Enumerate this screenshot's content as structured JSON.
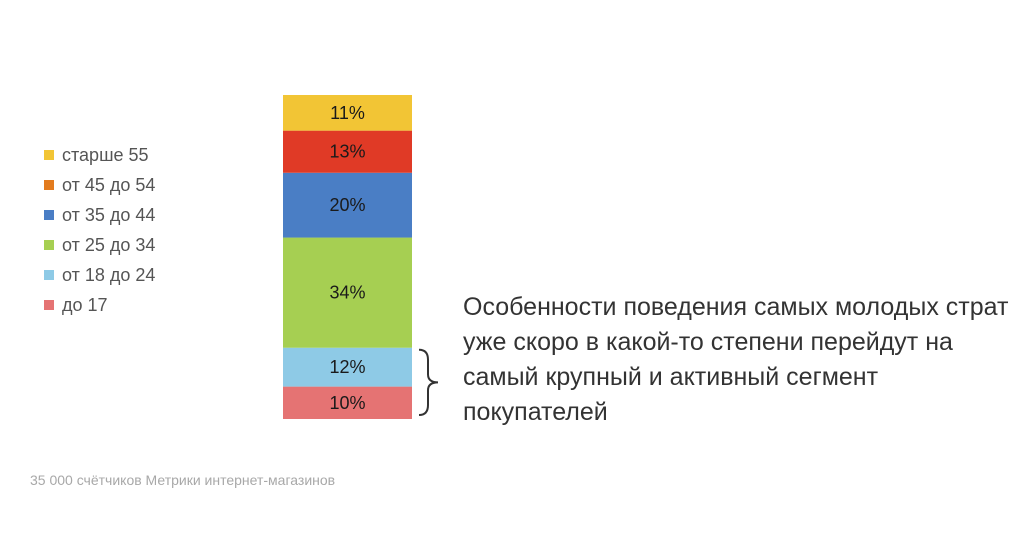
{
  "chart_data": {
    "type": "bar",
    "stacked": true,
    "categories": [
      ""
    ],
    "series": [
      {
        "name": "до 17",
        "values": [
          10
        ],
        "label": "10%",
        "color": "#e57373"
      },
      {
        "name": "от 18 до 24",
        "values": [
          12
        ],
        "label": "12%",
        "color": "#8ecae6"
      },
      {
        "name": "от 25 до 34",
        "values": [
          34
        ],
        "label": "34%",
        "color": "#a6cf52"
      },
      {
        "name": "от 35 до 44",
        "values": [
          20
        ],
        "label": "20%",
        "color": "#4a7ec5"
      },
      {
        "name": "от 45 до 54",
        "values": [
          13
        ],
        "label": "13%",
        "color": "#e03a26"
      },
      {
        "name": "старше 55",
        "values": [
          11
        ],
        "label": "11%",
        "color": "#f2c535"
      }
    ],
    "ylim": [
      0,
      100
    ],
    "grid": false,
    "legend_position": "left"
  },
  "legend": {
    "items": [
      {
        "label": "старше 55",
        "color": "#f2c535"
      },
      {
        "label": "от 45 до 54",
        "color": "#e37b1e"
      },
      {
        "label": "от 35 до 44",
        "color": "#4a7ec5"
      },
      {
        "label": "от 25 до 34",
        "color": "#a6cf52"
      },
      {
        "label": "от 18 до 24",
        "color": "#8ecae6"
      },
      {
        "label": "до 17",
        "color": "#e57373"
      }
    ]
  },
  "annotation": {
    "text": "Особенности поведения самых молодых страт уже скоро в какой-то степени перейдут на самый крупный и активный сегмент покупателей"
  },
  "footnote": "35 000 счётчиков Метрики интернет-магазинов"
}
